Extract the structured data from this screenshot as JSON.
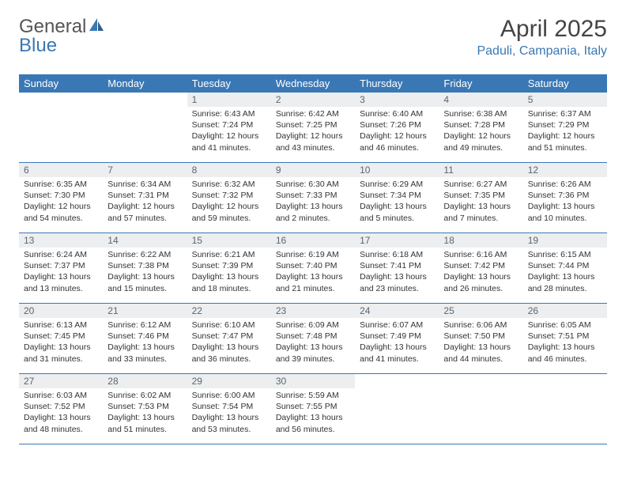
{
  "logo": {
    "text1": "General",
    "text2": "Blue"
  },
  "title": "April 2025",
  "location": "Paduli, Campania, Italy",
  "colors": {
    "header_bg": "#3a78b5",
    "header_text": "#ffffff",
    "daynum_bg": "#eceeef",
    "daynum_text": "#5c6670",
    "body_text": "#333333",
    "rule": "#3a78b5",
    "logo_gray": "#555555",
    "logo_blue": "#3a78b5"
  },
  "weekdays": [
    "Sunday",
    "Monday",
    "Tuesday",
    "Wednesday",
    "Thursday",
    "Friday",
    "Saturday"
  ],
  "weeks": [
    [
      null,
      null,
      {
        "n": "1",
        "sr": "Sunrise: 6:43 AM",
        "ss": "Sunset: 7:24 PM",
        "dl": "Daylight: 12 hours and 41 minutes."
      },
      {
        "n": "2",
        "sr": "Sunrise: 6:42 AM",
        "ss": "Sunset: 7:25 PM",
        "dl": "Daylight: 12 hours and 43 minutes."
      },
      {
        "n": "3",
        "sr": "Sunrise: 6:40 AM",
        "ss": "Sunset: 7:26 PM",
        "dl": "Daylight: 12 hours and 46 minutes."
      },
      {
        "n": "4",
        "sr": "Sunrise: 6:38 AM",
        "ss": "Sunset: 7:28 PM",
        "dl": "Daylight: 12 hours and 49 minutes."
      },
      {
        "n": "5",
        "sr": "Sunrise: 6:37 AM",
        "ss": "Sunset: 7:29 PM",
        "dl": "Daylight: 12 hours and 51 minutes."
      }
    ],
    [
      {
        "n": "6",
        "sr": "Sunrise: 6:35 AM",
        "ss": "Sunset: 7:30 PM",
        "dl": "Daylight: 12 hours and 54 minutes."
      },
      {
        "n": "7",
        "sr": "Sunrise: 6:34 AM",
        "ss": "Sunset: 7:31 PM",
        "dl": "Daylight: 12 hours and 57 minutes."
      },
      {
        "n": "8",
        "sr": "Sunrise: 6:32 AM",
        "ss": "Sunset: 7:32 PM",
        "dl": "Daylight: 12 hours and 59 minutes."
      },
      {
        "n": "9",
        "sr": "Sunrise: 6:30 AM",
        "ss": "Sunset: 7:33 PM",
        "dl": "Daylight: 13 hours and 2 minutes."
      },
      {
        "n": "10",
        "sr": "Sunrise: 6:29 AM",
        "ss": "Sunset: 7:34 PM",
        "dl": "Daylight: 13 hours and 5 minutes."
      },
      {
        "n": "11",
        "sr": "Sunrise: 6:27 AM",
        "ss": "Sunset: 7:35 PM",
        "dl": "Daylight: 13 hours and 7 minutes."
      },
      {
        "n": "12",
        "sr": "Sunrise: 6:26 AM",
        "ss": "Sunset: 7:36 PM",
        "dl": "Daylight: 13 hours and 10 minutes."
      }
    ],
    [
      {
        "n": "13",
        "sr": "Sunrise: 6:24 AM",
        "ss": "Sunset: 7:37 PM",
        "dl": "Daylight: 13 hours and 13 minutes."
      },
      {
        "n": "14",
        "sr": "Sunrise: 6:22 AM",
        "ss": "Sunset: 7:38 PM",
        "dl": "Daylight: 13 hours and 15 minutes."
      },
      {
        "n": "15",
        "sr": "Sunrise: 6:21 AM",
        "ss": "Sunset: 7:39 PM",
        "dl": "Daylight: 13 hours and 18 minutes."
      },
      {
        "n": "16",
        "sr": "Sunrise: 6:19 AM",
        "ss": "Sunset: 7:40 PM",
        "dl": "Daylight: 13 hours and 21 minutes."
      },
      {
        "n": "17",
        "sr": "Sunrise: 6:18 AM",
        "ss": "Sunset: 7:41 PM",
        "dl": "Daylight: 13 hours and 23 minutes."
      },
      {
        "n": "18",
        "sr": "Sunrise: 6:16 AM",
        "ss": "Sunset: 7:42 PM",
        "dl": "Daylight: 13 hours and 26 minutes."
      },
      {
        "n": "19",
        "sr": "Sunrise: 6:15 AM",
        "ss": "Sunset: 7:44 PM",
        "dl": "Daylight: 13 hours and 28 minutes."
      }
    ],
    [
      {
        "n": "20",
        "sr": "Sunrise: 6:13 AM",
        "ss": "Sunset: 7:45 PM",
        "dl": "Daylight: 13 hours and 31 minutes."
      },
      {
        "n": "21",
        "sr": "Sunrise: 6:12 AM",
        "ss": "Sunset: 7:46 PM",
        "dl": "Daylight: 13 hours and 33 minutes."
      },
      {
        "n": "22",
        "sr": "Sunrise: 6:10 AM",
        "ss": "Sunset: 7:47 PM",
        "dl": "Daylight: 13 hours and 36 minutes."
      },
      {
        "n": "23",
        "sr": "Sunrise: 6:09 AM",
        "ss": "Sunset: 7:48 PM",
        "dl": "Daylight: 13 hours and 39 minutes."
      },
      {
        "n": "24",
        "sr": "Sunrise: 6:07 AM",
        "ss": "Sunset: 7:49 PM",
        "dl": "Daylight: 13 hours and 41 minutes."
      },
      {
        "n": "25",
        "sr": "Sunrise: 6:06 AM",
        "ss": "Sunset: 7:50 PM",
        "dl": "Daylight: 13 hours and 44 minutes."
      },
      {
        "n": "26",
        "sr": "Sunrise: 6:05 AM",
        "ss": "Sunset: 7:51 PM",
        "dl": "Daylight: 13 hours and 46 minutes."
      }
    ],
    [
      {
        "n": "27",
        "sr": "Sunrise: 6:03 AM",
        "ss": "Sunset: 7:52 PM",
        "dl": "Daylight: 13 hours and 48 minutes."
      },
      {
        "n": "28",
        "sr": "Sunrise: 6:02 AM",
        "ss": "Sunset: 7:53 PM",
        "dl": "Daylight: 13 hours and 51 minutes."
      },
      {
        "n": "29",
        "sr": "Sunrise: 6:00 AM",
        "ss": "Sunset: 7:54 PM",
        "dl": "Daylight: 13 hours and 53 minutes."
      },
      {
        "n": "30",
        "sr": "Sunrise: 5:59 AM",
        "ss": "Sunset: 7:55 PM",
        "dl": "Daylight: 13 hours and 56 minutes."
      },
      null,
      null,
      null
    ]
  ]
}
